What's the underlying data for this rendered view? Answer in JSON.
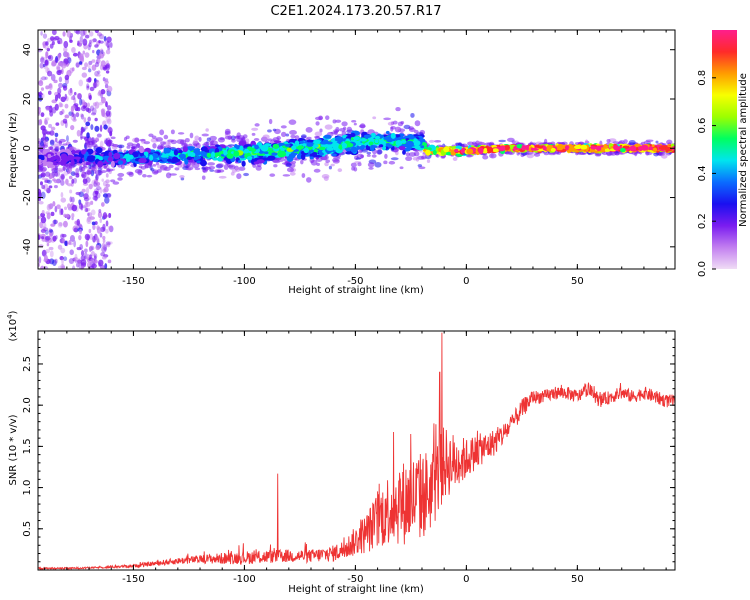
{
  "figure_title": "C2E1.2024.173.20.57.R17",
  "chart_data": [
    {
      "type": "heatmap",
      "xlabel": "Height of straight line (km)",
      "ylabel": "Frequency (Hz)",
      "xlim": [
        -193,
        94
      ],
      "ylim": [
        -49,
        48
      ],
      "x_ticks": [
        -150,
        -100,
        -50,
        0,
        50
      ],
      "y_ticks": [
        -40,
        -20,
        0,
        20,
        40
      ],
      "grid": false,
      "colorbar": {
        "label": "Normalized spectral amplitude",
        "range": [
          0,
          1
        ],
        "ticks": [
          0.0,
          0.2,
          0.4,
          0.6,
          0.8
        ],
        "colors": [
          "#f0dcf5",
          "#c27ef0",
          "#7a1cf0",
          "#1a10f0",
          "#0a6cff",
          "#00e5ee",
          "#00ff60",
          "#9cff00",
          "#f8ff00",
          "#ff9c00",
          "#ff2a2a",
          "#ff1e8c"
        ]
      },
      "band_profile": [
        {
          "x": -190,
          "center_hz": -4,
          "spread_hz": 3.5,
          "amplitude": 0.15
        },
        {
          "x": -160,
          "center_hz": -4,
          "spread_hz": 4,
          "amplitude": 0.3
        },
        {
          "x": -130,
          "center_hz": -3,
          "spread_hz": 4,
          "amplitude": 0.4
        },
        {
          "x": -100,
          "center_hz": -2,
          "spread_hz": 4.5,
          "amplitude": 0.45
        },
        {
          "x": -70,
          "center_hz": 0,
          "spread_hz": 5,
          "amplitude": 0.45
        },
        {
          "x": -40,
          "center_hz": 3,
          "spread_hz": 5,
          "amplitude": 0.45
        },
        {
          "x": -20,
          "center_hz": 2,
          "spread_hz": 4,
          "amplitude": 0.4
        },
        {
          "x": -18,
          "center_hz": -1,
          "spread_hz": 1.5,
          "amplitude": 0.75
        },
        {
          "x": 0,
          "center_hz": -1,
          "spread_hz": 1.5,
          "amplitude": 0.85
        },
        {
          "x": 20,
          "center_hz": 0,
          "spread_hz": 1.2,
          "amplitude": 0.95
        },
        {
          "x": 50,
          "center_hz": 0,
          "spread_hz": 1.2,
          "amplitude": 0.95
        },
        {
          "x": 94,
          "center_hz": 0,
          "spread_hz": 1.2,
          "amplitude": 0.95
        }
      ],
      "low_amplitude_scatter_region": {
        "x": [
          -193,
          -160
        ],
        "y": [
          -49,
          48
        ],
        "amplitude": 0.2
      }
    },
    {
      "type": "line",
      "xlabel": "Height of straight line (km)",
      "ylabel": "SNR (10 * v/v)",
      "y_multiplier_label": "(x10",
      "y_multiplier_exponent": "4",
      "y_multiplier_close": ")",
      "xlim": [
        -193,
        94
      ],
      "ylim": [
        0,
        2.9
      ],
      "x_ticks": [
        -150,
        -100,
        -50,
        0,
        50
      ],
      "y_ticks": [
        0.5,
        1.0,
        1.5,
        2.0,
        2.5
      ],
      "y_tick_labels": [
        "0.5",
        "1.0",
        "1.5",
        "2.0",
        "2.5"
      ],
      "grid": false,
      "series": [
        {
          "color": "#ee3333",
          "x": [
            -193,
            -180,
            -165,
            -150,
            -140,
            -130,
            -120,
            -110,
            -100,
            -90,
            -80,
            -70,
            -60,
            -55,
            -50,
            -45,
            -40,
            -35,
            -30,
            -25,
            -20,
            -15,
            -10,
            -5,
            0,
            5,
            10,
            15,
            20,
            25,
            30,
            35,
            40,
            45,
            50,
            55,
            60,
            65,
            70,
            75,
            80,
            85,
            90,
            94
          ],
          "y": [
            0.02,
            0.02,
            0.03,
            0.05,
            0.08,
            0.11,
            0.13,
            0.14,
            0.15,
            0.16,
            0.17,
            0.17,
            0.2,
            0.25,
            0.35,
            0.45,
            0.6,
            0.75,
            0.8,
            0.85,
            0.9,
            1.0,
            1.3,
            1.3,
            1.35,
            1.45,
            1.5,
            1.6,
            1.75,
            1.95,
            2.1,
            2.1,
            2.15,
            2.15,
            2.1,
            2.2,
            2.05,
            2.1,
            2.15,
            2.1,
            2.15,
            2.1,
            2.05,
            2.05
          ],
          "noise_amplitude": [
            0.01,
            0.01,
            0.01,
            0.02,
            0.03,
            0.04,
            0.05,
            0.07,
            0.08,
            0.08,
            0.08,
            0.08,
            0.1,
            0.12,
            0.18,
            0.25,
            0.35,
            0.45,
            0.5,
            0.55,
            0.55,
            0.5,
            0.45,
            0.35,
            0.25,
            0.2,
            0.18,
            0.15,
            0.12,
            0.12,
            0.08,
            0.08,
            0.08,
            0.08,
            0.08,
            0.08,
            0.08,
            0.08,
            0.08,
            0.08,
            0.08,
            0.08,
            0.08,
            0.08
          ],
          "peaks": [
            {
              "x": -85,
              "y": 1.17
            },
            {
              "x": -11,
              "y": 2.88
            },
            {
              "x": -12,
              "y": 2.4
            },
            {
              "x": -25,
              "y": 1.65
            }
          ]
        }
      ]
    }
  ]
}
